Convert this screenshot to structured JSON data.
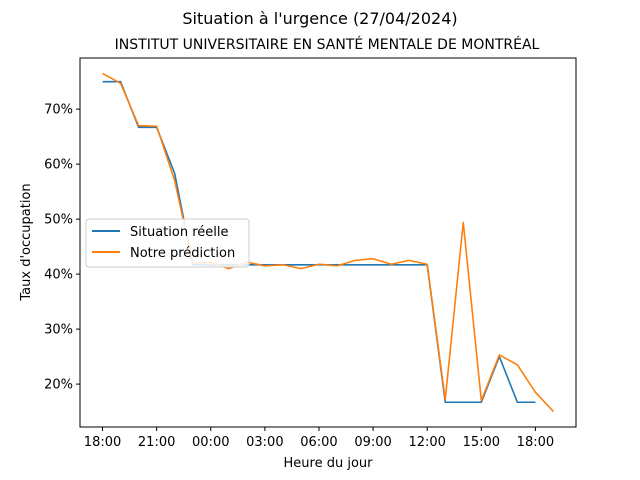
{
  "chart_data": {
    "type": "line",
    "title": "Situation à l'urgence (27/04/2024)",
    "subtitle": "INSTITUT UNIVERSITAIRE EN SANTÉ MENTALE DE MONTRÉAL",
    "xlabel": "Heure du jour",
    "ylabel": "Taux d'occupation",
    "x_tick_labels": [
      "18:00",
      "21:00",
      "00:00",
      "03:00",
      "06:00",
      "09:00",
      "12:00",
      "15:00",
      "18:00"
    ],
    "y_tick_labels": [
      "20%",
      "30%",
      "40%",
      "50%",
      "60%",
      "70%"
    ],
    "y_tick_values": [
      20,
      30,
      40,
      50,
      60,
      70
    ],
    "x_tick_hours": [
      0,
      3,
      6,
      9,
      12,
      15,
      18,
      21,
      24
    ],
    "xlim": [
      -1.25,
      26.25
    ],
    "ylim": [
      12.2,
      79.3
    ],
    "legend_position": "center-left",
    "grid": false,
    "series": [
      {
        "name": "Situation réelle",
        "color": "#1f77b4",
        "x": [
          0,
          1,
          2,
          3,
          4,
          5,
          6,
          7,
          8,
          9,
          10,
          11,
          12,
          13,
          14,
          15,
          16,
          17,
          18,
          19,
          20,
          21,
          22,
          23,
          24
        ],
        "values": [
          75.0,
          75.0,
          66.7,
          66.7,
          58.3,
          41.7,
          41.7,
          41.7,
          41.7,
          41.7,
          41.7,
          41.7,
          41.7,
          41.7,
          41.7,
          41.7,
          41.7,
          41.7,
          41.7,
          16.7,
          16.7,
          16.7,
          25.0,
          16.7,
          16.7
        ]
      },
      {
        "name": "Notre prédiction",
        "color": "#ff7f0e",
        "x": [
          0,
          1,
          2,
          3,
          4,
          5,
          6,
          7,
          8,
          9,
          10,
          11,
          12,
          13,
          14,
          15,
          16,
          17,
          18,
          19,
          20,
          21,
          22,
          23,
          24,
          25
        ],
        "values": [
          76.5,
          74.7,
          67.0,
          66.9,
          57.0,
          42.0,
          42.1,
          41.0,
          42.2,
          41.5,
          41.7,
          41.0,
          41.8,
          41.5,
          42.5,
          42.8,
          41.8,
          42.5,
          41.8,
          17.2,
          49.4,
          17.0,
          25.3,
          23.5,
          18.5,
          15.0
        ]
      }
    ]
  }
}
